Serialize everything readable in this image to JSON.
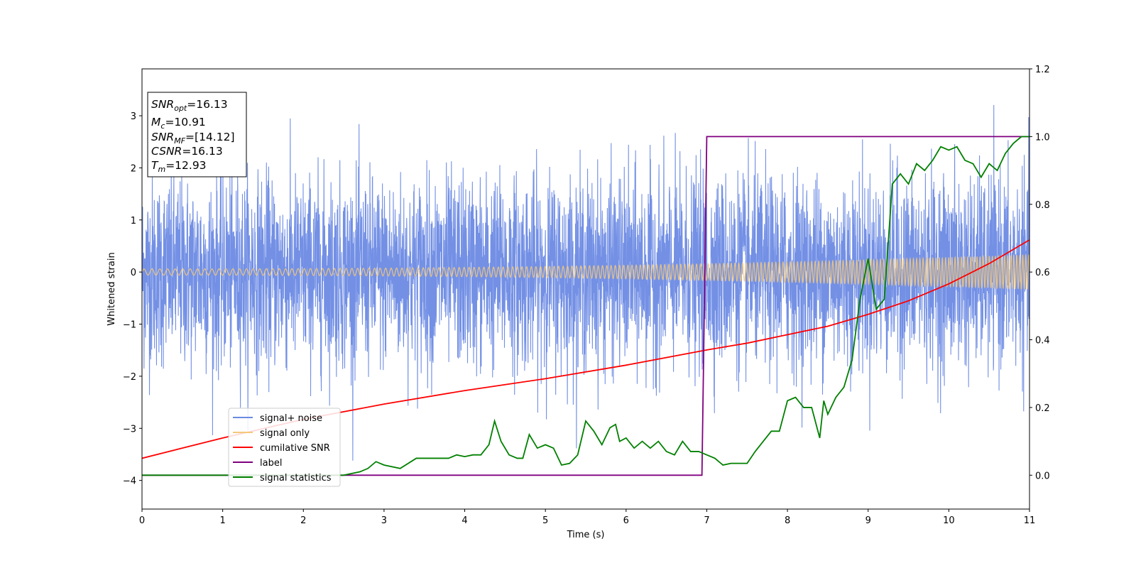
{
  "chart_data": {
    "type": "line",
    "xlabel": "Time (s)",
    "ylabel": "Whitened strain",
    "xlim": [
      0,
      11
    ],
    "ylim": [
      -4.55,
      3.9
    ],
    "y2lim": [
      -0.1,
      1.2
    ],
    "xticks": [
      "0",
      "1",
      "2",
      "3",
      "4",
      "5",
      "6",
      "7",
      "8",
      "9",
      "10",
      "11"
    ],
    "yticks": [
      {
        "v": 3,
        "label": "3"
      },
      {
        "v": 2,
        "label": "2"
      },
      {
        "v": 1,
        "label": "1"
      },
      {
        "v": 0,
        "label": "0"
      },
      {
        "v": -1,
        "label": "−1"
      },
      {
        "v": -2,
        "label": "−2"
      },
      {
        "v": -3,
        "label": "−3"
      },
      {
        "v": -4,
        "label": "−4"
      }
    ],
    "y2ticks": [
      "0.0",
      "0.2",
      "0.4",
      "0.6",
      "0.8",
      "1.0",
      "1.2"
    ],
    "grid": false,
    "legend_position": "lower-left",
    "series": [
      {
        "name": "signal+ noise",
        "color": "#6c8ae4",
        "axis": "left",
        "description_values": {
          "mean": 0,
          "std": 0.9,
          "min": -3.9,
          "max": 3.5
        }
      },
      {
        "name": "signal only",
        "color": "#f5c97a",
        "axis": "left",
        "amplitude_start": 0.06,
        "amplitude_end": 0.33,
        "start_freq_hz": 10,
        "end_freq_hz": 27
      },
      {
        "name": "cumilative SNR",
        "color": "#ff0000",
        "axis": "right",
        "x": [
          0,
          1,
          2,
          3,
          4,
          5,
          6,
          7,
          7.5,
          8,
          8.5,
          9,
          9.5,
          10,
          10.5,
          11
        ],
        "y": [
          0.05,
          0.11,
          0.165,
          0.21,
          0.25,
          0.285,
          0.325,
          0.37,
          0.39,
          0.415,
          0.44,
          0.475,
          0.515,
          0.565,
          0.625,
          0.695
        ]
      },
      {
        "name": "label",
        "color": "#800080",
        "axis": "right",
        "x": [
          0,
          6.94,
          7.0,
          11
        ],
        "y": [
          0,
          0,
          1,
          1
        ]
      },
      {
        "name": "signal statistics",
        "color": "#008000",
        "axis": "right",
        "x": [
          0,
          0.5,
          1,
          1.5,
          2,
          2.5,
          2.7,
          2.8,
          2.9,
          3.0,
          3.2,
          3.4,
          3.6,
          3.8,
          3.9,
          4.0,
          4.1,
          4.2,
          4.3,
          4.37,
          4.45,
          4.55,
          4.65,
          4.72,
          4.8,
          4.9,
          5.0,
          5.1,
          5.2,
          5.3,
          5.4,
          5.5,
          5.6,
          5.7,
          5.8,
          5.87,
          5.92,
          6.0,
          6.1,
          6.2,
          6.3,
          6.4,
          6.5,
          6.6,
          6.7,
          6.8,
          6.9,
          7.0,
          7.1,
          7.2,
          7.3,
          7.4,
          7.5,
          7.6,
          7.7,
          7.8,
          7.9,
          8.0,
          8.1,
          8.2,
          8.3,
          8.4,
          8.45,
          8.5,
          8.6,
          8.7,
          8.8,
          8.9,
          9.0,
          9.1,
          9.2,
          9.3,
          9.4,
          9.5,
          9.6,
          9.7,
          9.8,
          9.9,
          10.0,
          10.1,
          10.2,
          10.3,
          10.4,
          10.5,
          10.6,
          10.7,
          10.8,
          10.9,
          11.0
        ],
        "y": [
          0.0,
          0.0,
          0.0,
          0.0,
          0.0,
          0.0,
          0.01,
          0.02,
          0.04,
          0.03,
          0.02,
          0.05,
          0.05,
          0.05,
          0.06,
          0.055,
          0.06,
          0.06,
          0.09,
          0.16,
          0.1,
          0.06,
          0.05,
          0.05,
          0.12,
          0.08,
          0.09,
          0.08,
          0.03,
          0.035,
          0.06,
          0.16,
          0.13,
          0.09,
          0.14,
          0.15,
          0.1,
          0.11,
          0.08,
          0.1,
          0.08,
          0.1,
          0.07,
          0.06,
          0.1,
          0.07,
          0.07,
          0.06,
          0.05,
          0.03,
          0.035,
          0.035,
          0.035,
          0.07,
          0.1,
          0.13,
          0.13,
          0.22,
          0.23,
          0.2,
          0.2,
          0.11,
          0.22,
          0.18,
          0.23,
          0.26,
          0.34,
          0.52,
          0.64,
          0.49,
          0.52,
          0.86,
          0.89,
          0.86,
          0.92,
          0.9,
          0.93,
          0.97,
          0.96,
          0.97,
          0.93,
          0.92,
          0.88,
          0.92,
          0.9,
          0.95,
          0.98,
          1.0,
          1.0
        ]
      }
    ],
    "annotation_box": {
      "lines": [
        {
          "name": "SNR",
          "sub": "opt",
          "value": "=16.13"
        },
        {
          "name": "M",
          "sub": "c",
          "value": "=10.91"
        },
        {
          "name": "SNR",
          "sub": "MF",
          "value": "=[14.12]"
        },
        {
          "name": "CSNR",
          "sub": "",
          "value": "=16.13"
        },
        {
          "name": "T",
          "sub": "m",
          "value": "=12.93"
        }
      ]
    }
  }
}
